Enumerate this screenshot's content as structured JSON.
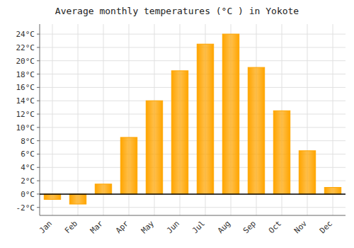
{
  "chart_data": {
    "type": "bar",
    "title": "Average monthly temperatures (°C ) in Yokote",
    "categories": [
      "Jan",
      "Feb",
      "Mar",
      "Apr",
      "May",
      "Jun",
      "Jul",
      "Aug",
      "Sep",
      "Oct",
      "Nov",
      "Dec"
    ],
    "values": [
      -0.8,
      -1.5,
      1.5,
      8.5,
      14.0,
      18.5,
      22.5,
      24.0,
      19.0,
      12.5,
      6.5,
      1.0
    ],
    "color": "#FFA500",
    "ylim": [
      -3.2,
      25.5
    ],
    "yticks": [
      {
        "value": -2,
        "label": "-2°C"
      },
      {
        "value": 0,
        "label": "0°C"
      },
      {
        "value": 2,
        "label": "2°C"
      },
      {
        "value": 4,
        "label": "4°C"
      },
      {
        "value": 6,
        "label": "6°C"
      },
      {
        "value": 8,
        "label": "8°C"
      },
      {
        "value": 10,
        "label": "10°C"
      },
      {
        "value": 12,
        "label": "12°C"
      },
      {
        "value": 14,
        "label": "14°C"
      },
      {
        "value": 16,
        "label": "16°C"
      },
      {
        "value": 18,
        "label": "18°C"
      },
      {
        "value": 20,
        "label": "20°C"
      },
      {
        "value": 22,
        "label": "22°C"
      },
      {
        "value": 24,
        "label": "24°C"
      }
    ],
    "grid": true
  }
}
